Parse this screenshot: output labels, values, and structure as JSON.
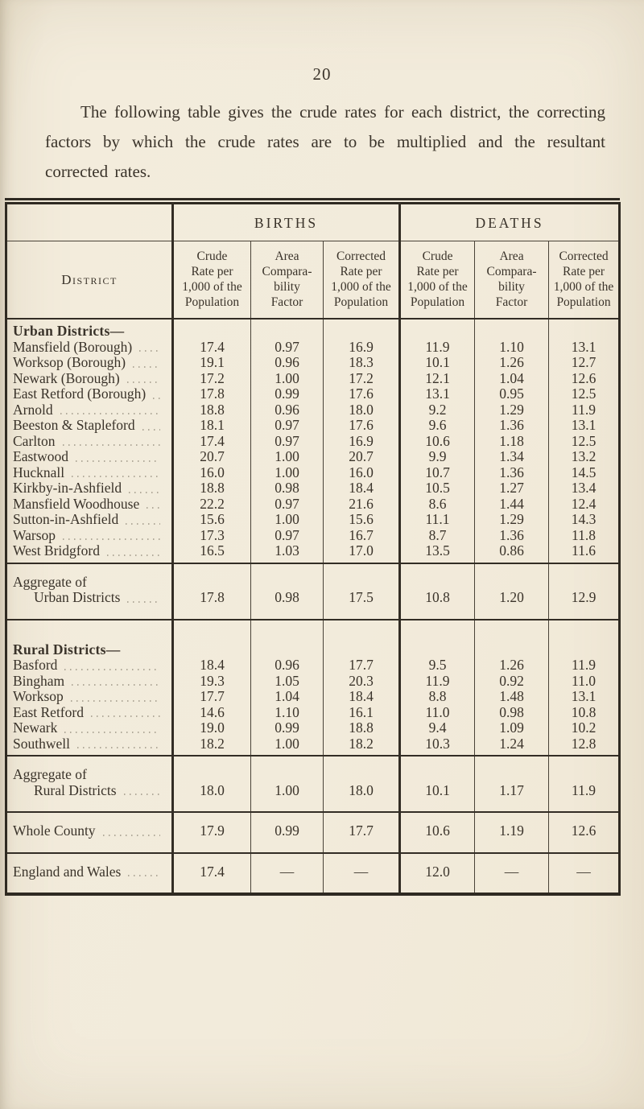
{
  "page": {
    "number": "20",
    "intro": "The following table gives the crude rates for each district, the correcting factors by which the crude rates are to be multiplied and the resultant corrected rates."
  },
  "table": {
    "groups": {
      "births": "BIRTHS",
      "deaths": "DEATHS"
    },
    "columns": {
      "district": "District",
      "crude": [
        "Crude",
        "Rate per",
        "1,000 of the",
        "Population"
      ],
      "factor": [
        "Area",
        "Compara-",
        "bility",
        "Factor"
      ],
      "corrected": [
        "Corrected",
        "Rate per",
        "1,000 of the",
        "Population"
      ]
    },
    "sections": [
      {
        "heading": "Urban Districts—",
        "rows": [
          {
            "district": "Mansfield (Borough)",
            "values": [
              "17.4",
              "0.97",
              "16.9",
              "11.9",
              "1.10",
              "13.1"
            ]
          },
          {
            "district": "Worksop (Borough)",
            "values": [
              "19.1",
              "0.96",
              "18.3",
              "10.1",
              "1.26",
              "12.7"
            ]
          },
          {
            "district": "Newark (Borough)",
            "values": [
              "17.2",
              "1.00",
              "17.2",
              "12.1",
              "1.04",
              "12.6"
            ]
          },
          {
            "district": "East Retford (Borough)",
            "values": [
              "17.8",
              "0.99",
              "17.6",
              "13.1",
              "0.95",
              "12.5"
            ]
          },
          {
            "district": "Arnold",
            "values": [
              "18.8",
              "0.96",
              "18.0",
              "9.2",
              "1.29",
              "11.9"
            ]
          },
          {
            "district": "Beeston & Stapleford",
            "values": [
              "18.1",
              "0.97",
              "17.6",
              "9.6",
              "1.36",
              "13.1"
            ]
          },
          {
            "district": "Carlton",
            "values": [
              "17.4",
              "0.97",
              "16.9",
              "10.6",
              "1.18",
              "12.5"
            ]
          },
          {
            "district": "Eastwood",
            "values": [
              "20.7",
              "1.00",
              "20.7",
              "9.9",
              "1.34",
              "13.2"
            ]
          },
          {
            "district": "Hucknall",
            "values": [
              "16.0",
              "1.00",
              "16.0",
              "10.7",
              "1.36",
              "14.5"
            ]
          },
          {
            "district": "Kirkby-in-Ashfield",
            "values": [
              "18.8",
              "0.98",
              "18.4",
              "10.5",
              "1.27",
              "13.4"
            ]
          },
          {
            "district": "Mansfield Woodhouse",
            "values": [
              "22.2",
              "0.97",
              "21.6",
              "8.6",
              "1.44",
              "12.4"
            ]
          },
          {
            "district": "Sutton-in-Ashfield",
            "values": [
              "15.6",
              "1.00",
              "15.6",
              "11.1",
              "1.29",
              "14.3"
            ]
          },
          {
            "district": "Warsop",
            "values": [
              "17.3",
              "0.97",
              "16.7",
              "8.7",
              "1.36",
              "11.8"
            ]
          },
          {
            "district": "West Bridgford",
            "values": [
              "16.5",
              "1.03",
              "17.0",
              "13.5",
              "0.86",
              "11.6"
            ]
          }
        ]
      },
      {
        "pad": true,
        "rows": [
          {
            "district": [
              "Aggregate of",
              "Urban Districts"
            ],
            "values": [
              "17.8",
              "0.98",
              "17.5",
              "10.8",
              "1.20",
              "12.9"
            ]
          }
        ]
      },
      {
        "heading": "Rural Districts—",
        "space_above": true,
        "rows": [
          {
            "district": "Basford",
            "values": [
              "18.4",
              "0.96",
              "17.7",
              "9.5",
              "1.26",
              "11.9"
            ]
          },
          {
            "district": "Bingham",
            "values": [
              "19.3",
              "1.05",
              "20.3",
              "11.9",
              "0.92",
              "11.0"
            ]
          },
          {
            "district": "Worksop",
            "values": [
              "17.7",
              "1.04",
              "18.4",
              "8.8",
              "1.48",
              "13.1"
            ]
          },
          {
            "district": "East Retford",
            "values": [
              "14.6",
              "1.10",
              "16.1",
              "11.0",
              "0.98",
              "10.8"
            ]
          },
          {
            "district": "Newark",
            "values": [
              "19.0",
              "0.99",
              "18.8",
              "9.4",
              "1.09",
              "10.2"
            ]
          },
          {
            "district": "Southwell",
            "values": [
              "18.2",
              "1.00",
              "18.2",
              "10.3",
              "1.24",
              "12.8"
            ]
          }
        ]
      },
      {
        "pad": true,
        "rows": [
          {
            "district": [
              "Aggregate of",
              "Rural Districts"
            ],
            "values": [
              "18.0",
              "1.00",
              "18.0",
              "10.1",
              "1.17",
              "11.9"
            ]
          }
        ]
      },
      {
        "pad": true,
        "rows": [
          {
            "district": "Whole County",
            "values": [
              "17.9",
              "0.99",
              "17.7",
              "10.6",
              "1.19",
              "12.6"
            ]
          }
        ]
      },
      {
        "pad": true,
        "rows": [
          {
            "district": "England and Wales",
            "values": [
              "17.4",
              "—",
              "—",
              "12.0",
              "—",
              "—"
            ]
          }
        ]
      }
    ]
  }
}
